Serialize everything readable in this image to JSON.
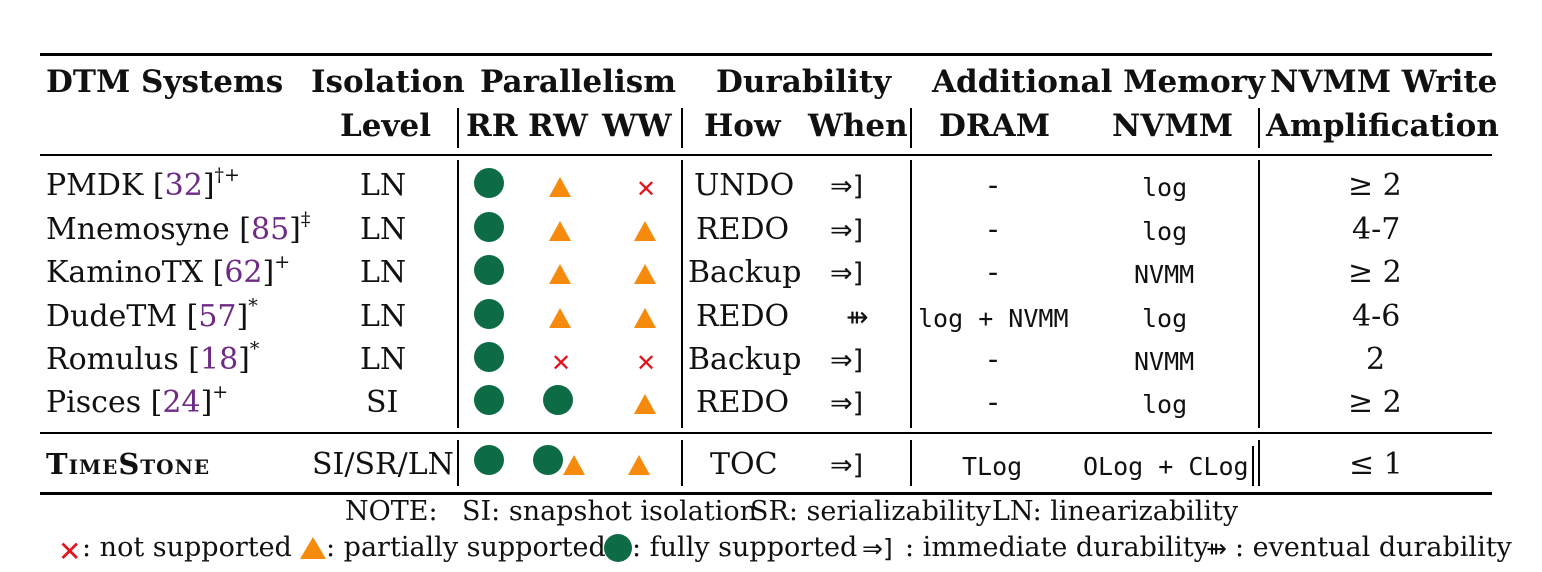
{
  "headers": {
    "systems": "DTM Systems",
    "isolation_1": "Isolation",
    "isolation_2": "Level",
    "parallelism": "Parallelism",
    "rr": "RR",
    "rw": "RW",
    "ww": "WW",
    "durability": "Durability",
    "how": "How",
    "when": "When",
    "additional_memory": "Additional Memory",
    "dram": "DRAM",
    "nvmm": "NVMM",
    "amp_1": "NVMM Write",
    "amp_2": "Amplification"
  },
  "rows": [
    {
      "name": "PMDK",
      "ref": "32",
      "mark": "†+",
      "isolation": "LN",
      "rr": "full",
      "rw": "partial",
      "ww": "none",
      "how": "UNDO",
      "when": "⇒]",
      "dram": "-",
      "nvmm": "log",
      "amp": "≥ 2"
    },
    {
      "name": "Mnemosyne",
      "ref": "85",
      "mark": "‡",
      "isolation": "LN",
      "rr": "full",
      "rw": "partial",
      "ww": "partial",
      "how": "REDO",
      "when": "⇒]",
      "dram": "-",
      "nvmm": "log",
      "amp": "4-7"
    },
    {
      "name": "KaminoTX",
      "ref": "62",
      "mark": "+",
      "isolation": "LN",
      "rr": "full",
      "rw": "partial",
      "ww": "partial",
      "how": "Backup",
      "when": "⇒]",
      "dram": "-",
      "nvmm": "NVMM",
      "amp": "≥ 2"
    },
    {
      "name": "DudeTM",
      "ref": "57",
      "mark": "*",
      "isolation": "LN",
      "rr": "full",
      "rw": "partial",
      "ww": "partial",
      "how": "REDO",
      "when": "⇻",
      "dram": "log + NVMM",
      "nvmm": "log",
      "amp": "4-6"
    },
    {
      "name": "Romulus",
      "ref": "18",
      "mark": "*",
      "isolation": "LN",
      "rr": "full",
      "rw": "none",
      "ww": "none",
      "how": "Backup",
      "when": "⇒]",
      "dram": "-",
      "nvmm": "NVMM",
      "amp": "2"
    },
    {
      "name": "Pisces",
      "ref": "24",
      "mark": "+",
      "isolation": "SI",
      "rr": "full",
      "rw": "full",
      "ww": "partial",
      "how": "REDO",
      "when": "⇒]",
      "dram": "-",
      "nvmm": "log",
      "amp": "≥ 2"
    }
  ],
  "timestone": {
    "name": "TimeStone",
    "isolation": "SI/SR/LN",
    "how": "TOC",
    "when": "⇒]",
    "dram": "TLog",
    "nvmm": "OLog + CLog",
    "amp": "≤ 1"
  },
  "notes": {
    "line1_prefix": "NOTE:",
    "si": "SI: snapshot isolation",
    "sr": "SR: serializability",
    "ln": "LN: linearizability",
    "not_supported": ": not supported",
    "partially_supported": ": partially supported",
    "fully_supported": ": fully supported",
    "immediate_symbol": "⇒]",
    "immediate": ": immediate durability",
    "eventual_symbol": "⇻",
    "eventual": " : eventual durability"
  },
  "colors": {
    "full": "#0d6b45",
    "partial": "#f58a0d",
    "none": "#e3141b",
    "cite": "#6f2a86"
  },
  "icons": {
    "full": "filled-circle",
    "partial": "triangle",
    "none": "cross"
  }
}
